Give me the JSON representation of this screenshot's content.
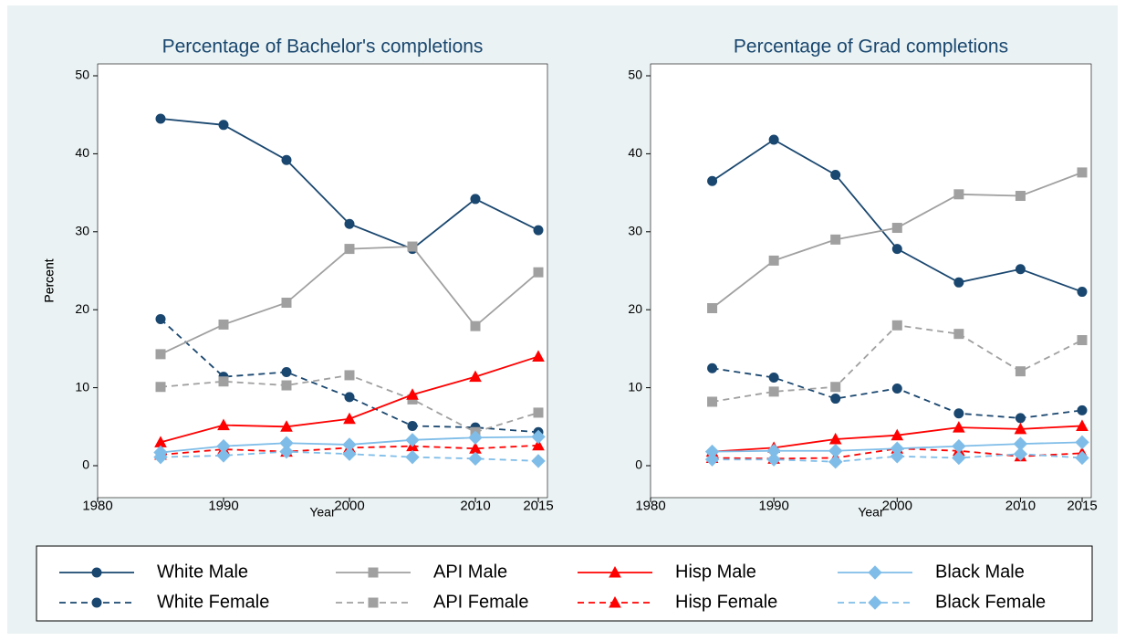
{
  "chart_data": [
    {
      "type": "line",
      "title": "Percentage of Bachelor's completions",
      "xlabel": "Year",
      "ylabel": "Percent",
      "x": [
        1985,
        1990,
        1995,
        2000,
        2005,
        2010,
        2015
      ],
      "xlim": [
        1980,
        2015
      ],
      "xticks": [
        1980,
        1990,
        2000,
        2010,
        2015
      ],
      "ylim": [
        0,
        50
      ],
      "yticks": [
        0,
        10,
        20,
        30,
        40,
        50
      ],
      "series": [
        {
          "name": "White Male",
          "color": "#1a476f",
          "marker": "circle",
          "dashed": false,
          "values": [
            44.5,
            43.7,
            39.2,
            31.0,
            27.8,
            34.2,
            30.2
          ]
        },
        {
          "name": "White Female",
          "color": "#1a476f",
          "marker": "circle",
          "dashed": true,
          "values": [
            18.8,
            11.4,
            12.0,
            8.8,
            5.1,
            4.9,
            4.3
          ]
        },
        {
          "name": "API Male",
          "color": "#a0a0a0",
          "marker": "square",
          "dashed": false,
          "values": [
            14.3,
            18.1,
            20.9,
            27.8,
            28.1,
            17.9,
            24.8
          ]
        },
        {
          "name": "API Female",
          "color": "#a0a0a0",
          "marker": "square",
          "dashed": true,
          "values": [
            10.1,
            10.8,
            10.3,
            11.6,
            8.5,
            4.3,
            6.8
          ]
        },
        {
          "name": "Hisp Male",
          "color": "#ff0000",
          "marker": "triangle",
          "dashed": false,
          "values": [
            3.0,
            5.2,
            5.0,
            6.0,
            9.1,
            11.4,
            14.0
          ]
        },
        {
          "name": "Hisp Female",
          "color": "#ff0000",
          "marker": "triangle",
          "dashed": true,
          "values": [
            1.4,
            2.1,
            1.8,
            2.3,
            2.5,
            2.2,
            2.6
          ]
        },
        {
          "name": "Black Male",
          "color": "#7fbde8",
          "marker": "diamond",
          "dashed": false,
          "values": [
            1.7,
            2.5,
            2.9,
            2.7,
            3.3,
            3.6,
            3.7
          ]
        },
        {
          "name": "Black Female",
          "color": "#7fbde8",
          "marker": "diamond",
          "dashed": true,
          "values": [
            1.1,
            1.3,
            1.8,
            1.5,
            1.1,
            0.9,
            0.6
          ]
        }
      ]
    },
    {
      "type": "line",
      "title": "Percentage of Grad completions",
      "xlabel": "Year",
      "ylabel": "Percent",
      "x": [
        1985,
        1990,
        1995,
        2000,
        2005,
        2010,
        2015
      ],
      "xlim": [
        1980,
        2015
      ],
      "xticks": [
        1980,
        1990,
        2000,
        2010,
        2015
      ],
      "ylim": [
        0,
        50
      ],
      "yticks": [
        0,
        10,
        20,
        30,
        40,
        50
      ],
      "series": [
        {
          "name": "White Male",
          "color": "#1a476f",
          "marker": "circle",
          "dashed": false,
          "values": [
            36.5,
            41.8,
            37.3,
            27.8,
            23.5,
            25.2,
            22.3
          ]
        },
        {
          "name": "White Female",
          "color": "#1a476f",
          "marker": "circle",
          "dashed": true,
          "values": [
            12.5,
            11.3,
            8.6,
            9.9,
            6.7,
            6.1,
            7.1
          ]
        },
        {
          "name": "API Male",
          "color": "#a0a0a0",
          "marker": "square",
          "dashed": false,
          "values": [
            20.2,
            26.3,
            29.0,
            30.5,
            34.8,
            34.6,
            37.6
          ]
        },
        {
          "name": "API Female",
          "color": "#a0a0a0",
          "marker": "square",
          "dashed": true,
          "values": [
            8.2,
            9.5,
            10.1,
            18.0,
            16.9,
            12.1,
            16.1
          ]
        },
        {
          "name": "Hisp Male",
          "color": "#ff0000",
          "marker": "triangle",
          "dashed": false,
          "values": [
            1.8,
            2.3,
            3.4,
            3.9,
            4.9,
            4.7,
            5.1
          ]
        },
        {
          "name": "Hisp Female",
          "color": "#ff0000",
          "marker": "triangle",
          "dashed": true,
          "values": [
            1.0,
            0.9,
            1.0,
            2.2,
            1.9,
            1.2,
            1.6
          ]
        },
        {
          "name": "Black Male",
          "color": "#7fbde8",
          "marker": "diamond",
          "dashed": false,
          "values": [
            1.8,
            1.9,
            1.9,
            2.2,
            2.5,
            2.8,
            3.0
          ]
        },
        {
          "name": "Black Female",
          "color": "#7fbde8",
          "marker": "diamond",
          "dashed": true,
          "values": [
            0.8,
            0.8,
            0.5,
            1.2,
            1.0,
            1.5,
            1.0
          ]
        }
      ]
    }
  ]
}
